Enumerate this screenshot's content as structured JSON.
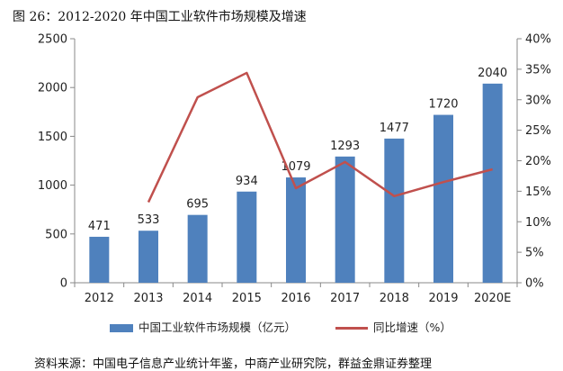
{
  "figure_title": "图 26：2012-2020 年中国工业软件市场规模及增速",
  "source_note": "资料来源：中国电子信息产业统计年鉴，中商产业研究院，群益金鼎证券整理",
  "colors": {
    "bar": "#4f81bd",
    "line": "#c0504d",
    "axis": "#888888"
  },
  "chart_data": {
    "type": "bar",
    "categories": [
      "2012",
      "2013",
      "2014",
      "2015",
      "2016",
      "2017",
      "2018",
      "2019",
      "2020E"
    ],
    "series": [
      {
        "name": "中国工业软件市场规模（亿元）",
        "type": "bar",
        "axis": "left",
        "values": [
          471,
          533,
          695,
          934,
          1079,
          1293,
          1477,
          1720,
          2040
        ]
      },
      {
        "name": "同比增速（%）",
        "type": "line",
        "axis": "right",
        "values": [
          null,
          13.2,
          30.4,
          34.4,
          15.5,
          19.8,
          14.2,
          16.5,
          18.6
        ]
      }
    ],
    "y_left": {
      "min": 0,
      "max": 2500,
      "ticks": [
        "0",
        "500",
        "1000",
        "1500",
        "2000",
        "2500"
      ]
    },
    "y_right": {
      "min": 0,
      "max": 40,
      "ticks": [
        "0%",
        "5%",
        "10%",
        "15%",
        "20%",
        "25%",
        "30%",
        "35%",
        "40%"
      ]
    },
    "data_labels": [
      "471",
      "533",
      "695",
      "934",
      "1079",
      "1293",
      "1477",
      "1720",
      "2040"
    ],
    "legend_position": "bottom",
    "grid": false
  }
}
